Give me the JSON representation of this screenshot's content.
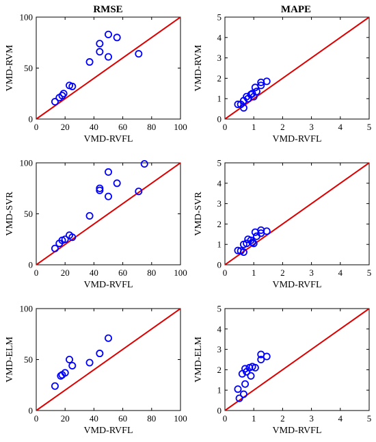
{
  "figure": {
    "column_titles": [
      "RMSE",
      "MAPE"
    ]
  },
  "colors": {
    "marker": "#0000ff",
    "reference_line": "#dd0000",
    "axes": "#000000"
  },
  "chart_data": [
    {
      "type": "scatter",
      "title": "RMSE",
      "xlabel": "VMD-RVFL",
      "ylabel": "VMD-RVM",
      "xlim": [
        0,
        100
      ],
      "ylim": [
        0,
        100
      ],
      "xticks": [
        0,
        20,
        40,
        60,
        80,
        100
      ],
      "yticks": [
        0,
        50,
        100
      ],
      "reference_line": "y = x",
      "grid": false,
      "x": [
        13,
        16,
        18,
        19,
        23,
        25,
        37,
        44,
        44,
        50,
        50,
        56,
        71
      ],
      "y": [
        17,
        21,
        23,
        25,
        33,
        32,
        56,
        66,
        74,
        61,
        83,
        80,
        64
      ]
    },
    {
      "type": "scatter",
      "title": "MAPE",
      "xlabel": "VMD-RVFL",
      "ylabel": "VMD-RVM",
      "xlim": [
        0,
        5
      ],
      "ylim": [
        0,
        5
      ],
      "xticks": [
        0,
        1,
        2,
        3,
        4,
        5
      ],
      "yticks": [
        0,
        1,
        2,
        3,
        4,
        5
      ],
      "reference_line": "y = x",
      "grid": false,
      "x": [
        0.45,
        0.55,
        0.65,
        0.65,
        0.75,
        0.8,
        0.9,
        0.95,
        1.0,
        1.05,
        1.1,
        1.25,
        1.25,
        1.45
      ],
      "y": [
        0.72,
        0.72,
        0.55,
        0.9,
        1.1,
        1.0,
        1.2,
        1.25,
        1.1,
        1.55,
        1.35,
        1.65,
        1.8,
        1.85
      ]
    },
    {
      "type": "scatter",
      "xlabel": "VMD-RVFL",
      "ylabel": "VMD-SVR",
      "xlim": [
        0,
        100
      ],
      "ylim": [
        0,
        100
      ],
      "xticks": [
        0,
        20,
        40,
        60,
        80,
        100
      ],
      "yticks": [
        0,
        50,
        100
      ],
      "reference_line": "y = x",
      "grid": false,
      "x": [
        13,
        16,
        18,
        20,
        23,
        25,
        37,
        44,
        44,
        50,
        50,
        56,
        71,
        75
      ],
      "y": [
        16,
        21,
        24,
        25,
        29,
        27,
        48,
        75,
        73,
        67,
        91,
        80,
        72,
        99
      ]
    },
    {
      "type": "scatter",
      "xlabel": "VMD-RVFL",
      "ylabel": "VMD-SVR",
      "xlim": [
        0,
        5
      ],
      "ylim": [
        0,
        5
      ],
      "xticks": [
        0,
        1,
        2,
        3,
        4,
        5
      ],
      "yticks": [
        0,
        1,
        2,
        3,
        4,
        5
      ],
      "reference_line": "y = x",
      "grid": false,
      "x": [
        0.45,
        0.55,
        0.65,
        0.65,
        0.75,
        0.8,
        0.9,
        0.95,
        1.0,
        1.05,
        1.1,
        1.25,
        1.25,
        1.45
      ],
      "y": [
        0.7,
        0.68,
        0.62,
        1.0,
        1.05,
        1.25,
        1.2,
        1.1,
        1.05,
        1.6,
        1.4,
        1.55,
        1.7,
        1.65
      ]
    },
    {
      "type": "scatter",
      "xlabel": "VMD-RVFL",
      "ylabel": "VMD-ELM",
      "xlim": [
        0,
        100
      ],
      "ylim": [
        0,
        100
      ],
      "xticks": [
        0,
        20,
        40,
        60,
        80,
        100
      ],
      "yticks": [
        0,
        50,
        100
      ],
      "reference_line": "y = x",
      "grid": false,
      "x": [
        13,
        17,
        18,
        20,
        23,
        25,
        37,
        44,
        50
      ],
      "y": [
        24,
        34,
        35,
        37,
        50,
        44,
        47,
        56,
        71
      ]
    },
    {
      "type": "scatter",
      "xlabel": "VMD-RVFL",
      "ylabel": "VMD-ELM",
      "xlim": [
        0,
        5
      ],
      "ylim": [
        0,
        5
      ],
      "xticks": [
        0,
        1,
        2,
        3,
        4,
        5
      ],
      "yticks": [
        0,
        1,
        2,
        3,
        4,
        5
      ],
      "reference_line": "y = x",
      "grid": false,
      "x": [
        0.45,
        0.5,
        0.6,
        0.65,
        0.7,
        0.7,
        0.75,
        0.85,
        0.9,
        0.95,
        1.05,
        1.25,
        1.25,
        1.45
      ],
      "y": [
        1.05,
        0.6,
        1.8,
        0.8,
        1.3,
        2.05,
        1.9,
        2.1,
        1.7,
        2.15,
        2.1,
        2.5,
        2.75,
        2.65
      ]
    }
  ]
}
